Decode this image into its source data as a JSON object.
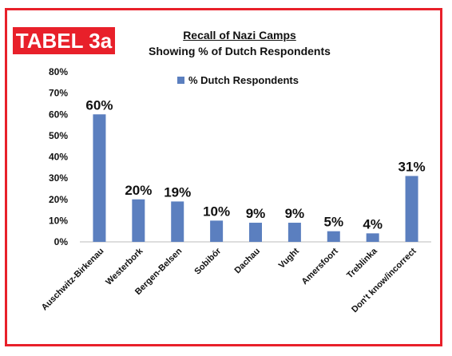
{
  "badge": "TABEL 3a",
  "chart_data": {
    "type": "bar",
    "title": "Recall of Nazi Camps",
    "subtitle": "Showing % of Dutch Respondents",
    "categories": [
      "Auschwitz-Birkenau",
      "Westerbork",
      "Bergen-Belsen",
      "Sobibór",
      "Dachau",
      "Vught",
      "Amersfoort",
      "Treblinka",
      "Don't know/incorrect"
    ],
    "series": [
      {
        "name": "% Dutch Respondents",
        "values": [
          60,
          20,
          19,
          10,
          9,
          9,
          5,
          4,
          31
        ],
        "color": "#5b7fbf"
      }
    ],
    "data_labels": [
      "60%",
      "20%",
      "19%",
      "10%",
      "9%",
      "9%",
      "5%",
      "4%",
      "31%"
    ],
    "yticks": [
      "0%",
      "10%",
      "20%",
      "30%",
      "40%",
      "50%",
      "60%",
      "70%",
      "80%"
    ],
    "ylim": [
      0,
      80
    ],
    "legend_position": "top",
    "grid": false,
    "border_color": "#e8202a"
  }
}
